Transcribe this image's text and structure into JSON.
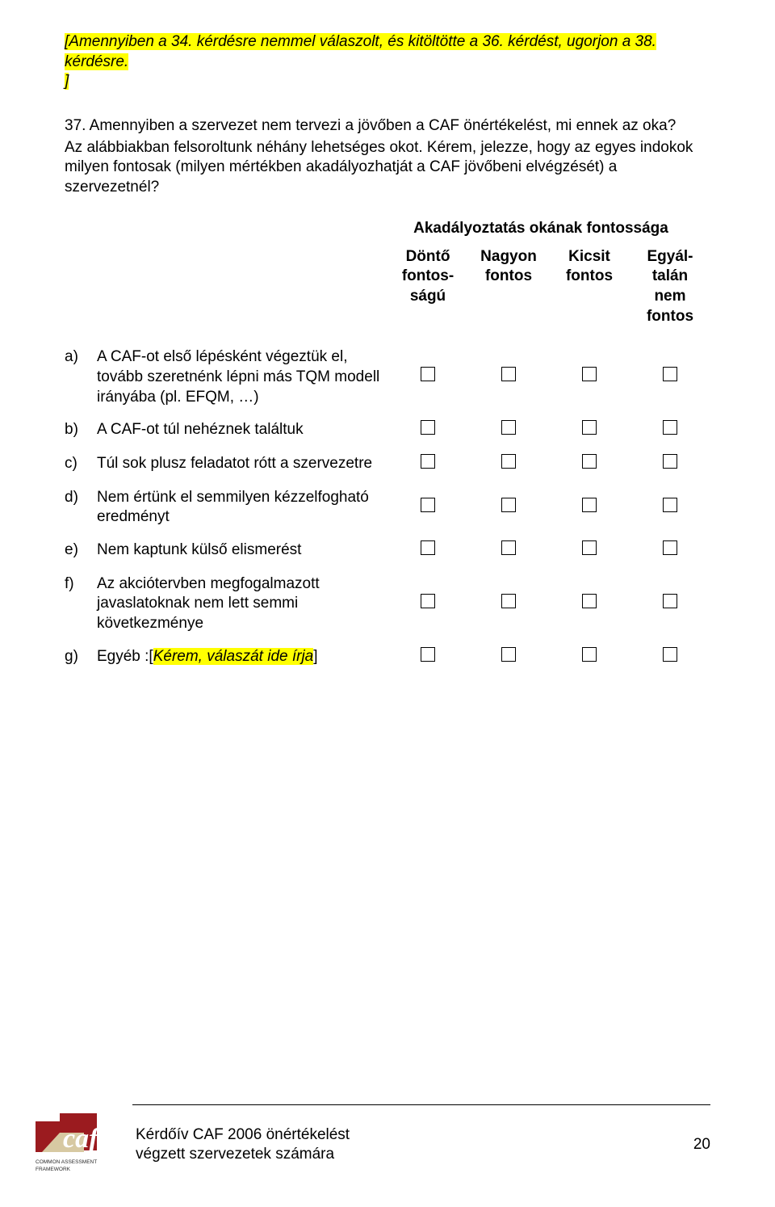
{
  "instruction_prefix": "[Amennyiben a 34. kérdésre nemmel válaszolt, és kitöltötte a 36. kérdést, ugorjon a 38. kérdésre.",
  "instruction_closebracket": "]",
  "q37": {
    "num": "37.",
    "line1": "Amennyiben a szervezet nem tervezi a jövőben a CAF önértékelést, mi ennek az oka?",
    "line2": "Az alábbiakban felsoroltunk néhány lehetséges okot. Kérem, jelezze, hogy az egyes indokok milyen fontosak (milyen mértékben akadályozhatját a CAF jövőbeni elvégzését) a szervezetnél?"
  },
  "matrix": {
    "header_title": "Akadályoztatás okának fontossága",
    "columns": [
      "Döntő fontos-ságú",
      "Nagyon fontos",
      "Kicsit fontos",
      "Egyál-talán nem fontos"
    ],
    "rows": [
      {
        "label": "a)",
        "text": "A CAF-ot első lépésként végeztük el, tovább szeretnénk lépni más TQM modell irányába (pl. EFQM, …)"
      },
      {
        "label": "b)",
        "text": "A CAF-ot túl nehéznek találtuk"
      },
      {
        "label": "c)",
        "text": "Túl sok plusz feladatot rótt a szervezetre"
      },
      {
        "label": "d)",
        "text": "Nem értünk el semmilyen kézzelfogható eredményt"
      },
      {
        "label": "e)",
        "text": "Nem kaptunk külső elismerést"
      },
      {
        "label": "f)",
        "text": "Az akciótervben megfogalmazott javaslatoknak nem lett semmi következménye"
      },
      {
        "label": "g)",
        "text_prefix": "Egyéb :[",
        "text_highlight": "Kérem, válaszát ide írja",
        "text_suffix": "]"
      }
    ]
  },
  "footer": {
    "title_line1": "Kérdőív CAF 2006 önértékelést",
    "title_line2": "végzett szervezetek számára",
    "page": "20",
    "logo": {
      "big_text": "caf",
      "small_top": "COMMON ASSESSMENT",
      "small_bottom": "FRAMEWORK",
      "red": "#9b1b1f",
      "beige": "#d7c9a2",
      "dark": "#2b2b2b"
    }
  }
}
